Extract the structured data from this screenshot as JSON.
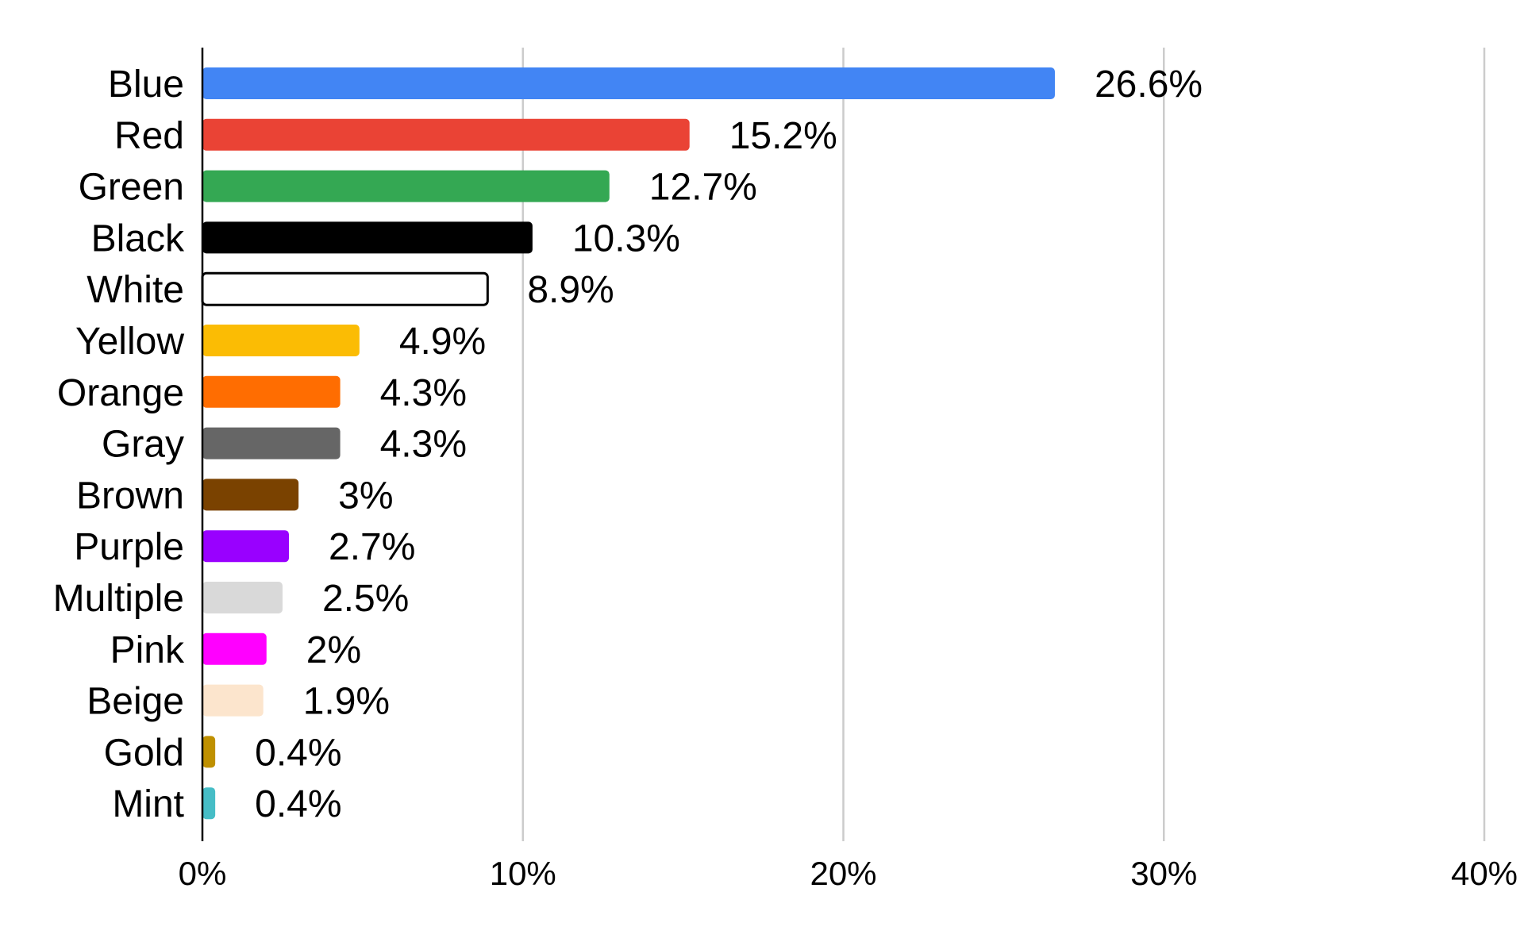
{
  "chart_data": {
    "type": "bar",
    "orientation": "horizontal",
    "title": "",
    "xlabel": "",
    "ylabel": "",
    "xlim": [
      0,
      40
    ],
    "x_ticks": [
      0,
      10,
      20,
      30,
      40
    ],
    "x_tick_labels": [
      "0%",
      "10%",
      "20%",
      "30%",
      "40%"
    ],
    "grid": "vertical",
    "legend": "none",
    "categories": [
      "Blue",
      "Red",
      "Green",
      "Black",
      "White",
      "Yellow",
      "Orange",
      "Gray",
      "Brown",
      "Purple",
      "Multiple",
      "Pink",
      "Beige",
      "Gold",
      "Mint"
    ],
    "values": [
      26.6,
      15.2,
      12.7,
      10.3,
      8.9,
      4.9,
      4.3,
      4.3,
      3,
      2.7,
      2.5,
      2,
      1.9,
      0.4,
      0.4
    ],
    "value_labels": [
      "26.6%",
      "15.2%",
      "12.7%",
      "10.3%",
      "8.9%",
      "4.9%",
      "4.3%",
      "4.3%",
      "3%",
      "2.7%",
      "2.5%",
      "2%",
      "1.9%",
      "0.4%",
      "0.4%"
    ],
    "colors": [
      "#4285f4",
      "#ea4335",
      "#34a853",
      "#000000",
      "#ffffff",
      "#fbbc04",
      "#ff6d01",
      "#666666",
      "#7a4200",
      "#9900ff",
      "#d9d9d9",
      "#ff00ff",
      "#fce5cd",
      "#bf9000",
      "#46bdc6"
    ],
    "outlines": [
      null,
      null,
      null,
      null,
      "#000000",
      null,
      null,
      null,
      null,
      null,
      null,
      null,
      null,
      null,
      null
    ]
  }
}
